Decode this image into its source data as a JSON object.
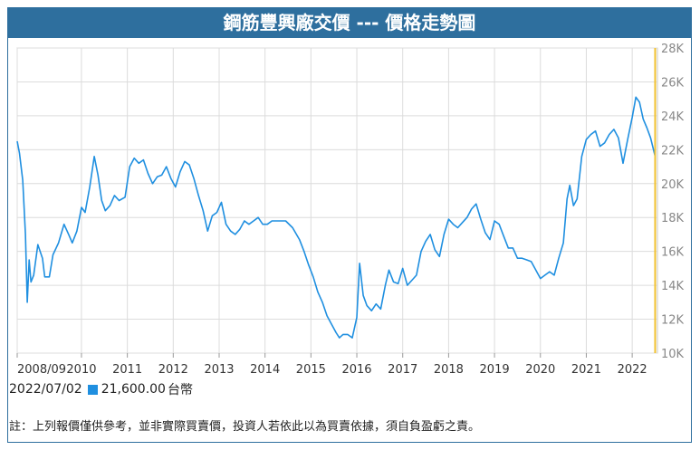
{
  "header": {
    "title": "鋼筋豐興廠交價 --- 價格走勢圖"
  },
  "readout": {
    "date": "2022/07/02",
    "value": "21,600.00",
    "unit": "台幣"
  },
  "note": "註：上列報價僅供參考，並非實際買賣價，投資人若依此以為買賣依據，須自負盈虧之責。",
  "colors": {
    "title_bg": "#2e6f9e",
    "line": "#1f8fe0",
    "cursor": "#f2c230",
    "grid": "#dcdcdc"
  },
  "chart_data": {
    "type": "line",
    "title": "",
    "xlabel": "",
    "ylabel": "",
    "x_ticks": [
      "2008/09",
      "2010",
      "2011",
      "2012",
      "2013",
      "2014",
      "2015",
      "2016",
      "2017",
      "2018",
      "2019",
      "2020",
      "2021",
      "2022"
    ],
    "y_ticks": [
      "10K",
      "12K",
      "14K",
      "16K",
      "18K",
      "20K",
      "22K",
      "24K",
      "26K",
      "28K"
    ],
    "xlim": [
      2008.6,
      2022.55
    ],
    "ylim": [
      10000,
      28000
    ],
    "grid": true,
    "cursor_x": 2022.5,
    "series": [
      {
        "values": [
          [
            2008.6,
            22500
          ],
          [
            2008.65,
            21800
          ],
          [
            2008.72,
            20200
          ],
          [
            2008.78,
            17000
          ],
          [
            2008.82,
            13000
          ],
          [
            2008.86,
            15500
          ],
          [
            2008.9,
            14200
          ],
          [
            2008.96,
            14600
          ],
          [
            2009.05,
            16400
          ],
          [
            2009.15,
            15600
          ],
          [
            2009.2,
            14500
          ],
          [
            2009.3,
            14500
          ],
          [
            2009.38,
            15800
          ],
          [
            2009.5,
            16500
          ],
          [
            2009.62,
            17600
          ],
          [
            2009.72,
            17000
          ],
          [
            2009.8,
            16500
          ],
          [
            2009.9,
            17200
          ],
          [
            2010.0,
            18600
          ],
          [
            2010.08,
            18300
          ],
          [
            2010.18,
            19800
          ],
          [
            2010.28,
            21600
          ],
          [
            2010.36,
            20500
          ],
          [
            2010.44,
            19000
          ],
          [
            2010.52,
            18400
          ],
          [
            2010.62,
            18700
          ],
          [
            2010.72,
            19300
          ],
          [
            2010.82,
            19000
          ],
          [
            2010.95,
            19200
          ],
          [
            2011.05,
            21000
          ],
          [
            2011.15,
            21500
          ],
          [
            2011.25,
            21200
          ],
          [
            2011.35,
            21400
          ],
          [
            2011.45,
            20600
          ],
          [
            2011.55,
            20000
          ],
          [
            2011.65,
            20400
          ],
          [
            2011.75,
            20500
          ],
          [
            2011.85,
            21000
          ],
          [
            2011.95,
            20300
          ],
          [
            2012.05,
            19800
          ],
          [
            2012.15,
            20700
          ],
          [
            2012.25,
            21300
          ],
          [
            2012.35,
            21100
          ],
          [
            2012.45,
            20300
          ],
          [
            2012.55,
            19300
          ],
          [
            2012.65,
            18400
          ],
          [
            2012.75,
            17200
          ],
          [
            2012.85,
            18100
          ],
          [
            2012.95,
            18300
          ],
          [
            2013.05,
            18900
          ],
          [
            2013.15,
            17600
          ],
          [
            2013.25,
            17200
          ],
          [
            2013.35,
            17000
          ],
          [
            2013.45,
            17300
          ],
          [
            2013.55,
            17800
          ],
          [
            2013.65,
            17600
          ],
          [
            2013.75,
            17800
          ],
          [
            2013.85,
            18000
          ],
          [
            2013.95,
            17600
          ],
          [
            2014.05,
            17600
          ],
          [
            2014.15,
            17800
          ],
          [
            2014.3,
            17800
          ],
          [
            2014.45,
            17800
          ],
          [
            2014.6,
            17400
          ],
          [
            2014.75,
            16700
          ],
          [
            2014.85,
            16000
          ],
          [
            2014.95,
            15200
          ],
          [
            2015.05,
            14500
          ],
          [
            2015.15,
            13600
          ],
          [
            2015.25,
            13000
          ],
          [
            2015.35,
            12200
          ],
          [
            2015.45,
            11700
          ],
          [
            2015.55,
            11200
          ],
          [
            2015.62,
            10900
          ],
          [
            2015.7,
            11100
          ],
          [
            2015.8,
            11100
          ],
          [
            2015.9,
            10900
          ],
          [
            2016.0,
            12100
          ],
          [
            2016.06,
            15300
          ],
          [
            2016.14,
            13400
          ],
          [
            2016.22,
            12800
          ],
          [
            2016.32,
            12500
          ],
          [
            2016.42,
            12900
          ],
          [
            2016.52,
            12600
          ],
          [
            2016.62,
            14000
          ],
          [
            2016.7,
            14900
          ],
          [
            2016.8,
            14200
          ],
          [
            2016.9,
            14100
          ],
          [
            2017.0,
            15000
          ],
          [
            2017.1,
            14000
          ],
          [
            2017.2,
            14300
          ],
          [
            2017.3,
            14600
          ],
          [
            2017.4,
            16000
          ],
          [
            2017.5,
            16600
          ],
          [
            2017.6,
            17000
          ],
          [
            2017.7,
            16100
          ],
          [
            2017.8,
            15700
          ],
          [
            2017.9,
            17000
          ],
          [
            2018.0,
            17900
          ],
          [
            2018.1,
            17600
          ],
          [
            2018.2,
            17400
          ],
          [
            2018.3,
            17700
          ],
          [
            2018.4,
            18000
          ],
          [
            2018.5,
            18500
          ],
          [
            2018.6,
            18800
          ],
          [
            2018.7,
            17900
          ],
          [
            2018.8,
            17100
          ],
          [
            2018.9,
            16700
          ],
          [
            2019.0,
            17800
          ],
          [
            2019.1,
            17600
          ],
          [
            2019.2,
            16900
          ],
          [
            2019.3,
            16200
          ],
          [
            2019.4,
            16200
          ],
          [
            2019.5,
            15600
          ],
          [
            2019.6,
            15600
          ],
          [
            2019.7,
            15500
          ],
          [
            2019.8,
            15400
          ],
          [
            2019.9,
            14900
          ],
          [
            2020.0,
            14400
          ],
          [
            2020.1,
            14600
          ],
          [
            2020.2,
            14800
          ],
          [
            2020.3,
            14600
          ],
          [
            2020.4,
            15600
          ],
          [
            2020.5,
            16500
          ],
          [
            2020.58,
            19100
          ],
          [
            2020.64,
            19900
          ],
          [
            2020.72,
            18700
          ],
          [
            2020.8,
            19100
          ],
          [
            2020.9,
            21600
          ],
          [
            2021.0,
            22600
          ],
          [
            2021.1,
            22900
          ],
          [
            2021.2,
            23100
          ],
          [
            2021.3,
            22200
          ],
          [
            2021.4,
            22400
          ],
          [
            2021.5,
            22900
          ],
          [
            2021.6,
            23200
          ],
          [
            2021.7,
            22700
          ],
          [
            2021.8,
            21200
          ],
          [
            2021.9,
            22600
          ],
          [
            2022.0,
            23900
          ],
          [
            2022.08,
            25100
          ],
          [
            2022.16,
            24800
          ],
          [
            2022.24,
            23800
          ],
          [
            2022.32,
            23300
          ],
          [
            2022.4,
            22700
          ],
          [
            2022.5,
            21600
          ]
        ]
      }
    ]
  }
}
